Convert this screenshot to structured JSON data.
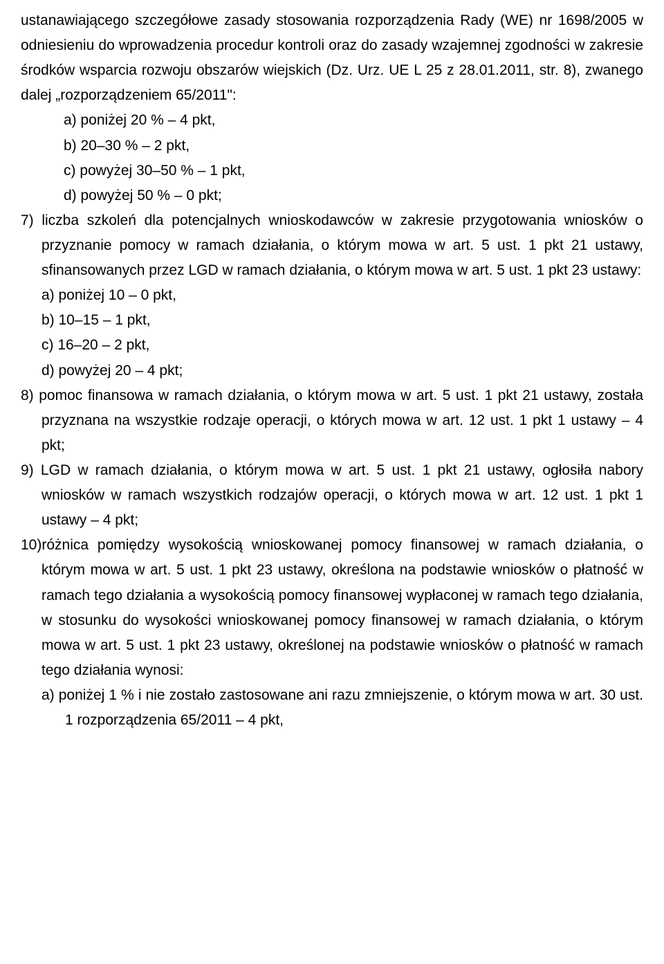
{
  "intro": "ustanawiającego szczegółowe zasady stosowania rozporządzenia Rady (WE) nr 1698/2005 w odniesieniu do wprowadzenia procedur kontroli oraz do zasady wzajemnej zgodności w zakresie środków wsparcia rozwoju obszarów wiejskich (Dz. Urz. UE L 25 z 28.01.2011, str. 8), zwanego dalej „rozporządzeniem 65/2011\":",
  "i6a": "a)  poniżej 20 % – 4 pkt,",
  "i6b": "b)   20–30 % – 2 pkt,",
  "i6c": "c)  powyżej  30–50 % – 1 pkt,",
  "i6d": "d)  powyżej 50 % – 0 pkt;",
  "i7": "7)  liczba szkoleń dla potencjalnych wnioskodawców w zakresie przygotowania wniosków o przyznanie pomocy w ramach działania, o którym mowa w art. 5 ust. 1 pkt 21 ustawy, sfinansowanych przez LGD w ramach działania, o którym mowa w art. 5 ust. 1 pkt 23 ustawy:",
  "i7a": "a)  poniżej 10 – 0 pkt,",
  "i7b": "b)  10–15 – 1 pkt,",
  "i7c": "c)  16–20 – 2 pkt,",
  "i7d": "d)  powyżej 20 – 4 pkt;",
  "i8": "8)  pomoc finansowa w ramach działania, o którym mowa w art. 5 ust. 1 pkt 21 ustawy, została przyznana na wszystkie rodzaje operacji, o których mowa w art. 12 ust. 1 pkt 1 ustawy – 4 pkt;",
  "i9": "9)  LGD w ramach działania, o którym mowa w art. 5 ust. 1 pkt 21 ustawy, ogłosiła nabory wniosków w ramach wszystkich rodzajów operacji, o których mowa w art. 12 ust. 1 pkt 1 ustawy – 4 pkt;",
  "i10": "10)różnica pomiędzy wysokością wnioskowanej pomocy finansowej w ramach działania, o którym mowa w art. 5 ust. 1 pkt 23 ustawy, określona na podstawie wniosków o płatność w ramach tego działania a wysokością pomocy finansowej wypłaconej w ramach tego działania, w stosunku do wysokości wnioskowanej pomocy finansowej w ramach działania, o którym mowa w art. 5 ust. 1 pkt 23 ustawy, określonej na podstawie wniosków o płatność w ramach tego działania wynosi:",
  "i10a": "a)  poniżej 1 % i nie zostało zastosowane ani razu zmniejszenie, o którym mowa w art. 30 ust. 1 rozporządzenia 65/2011 – 4 pkt,"
}
